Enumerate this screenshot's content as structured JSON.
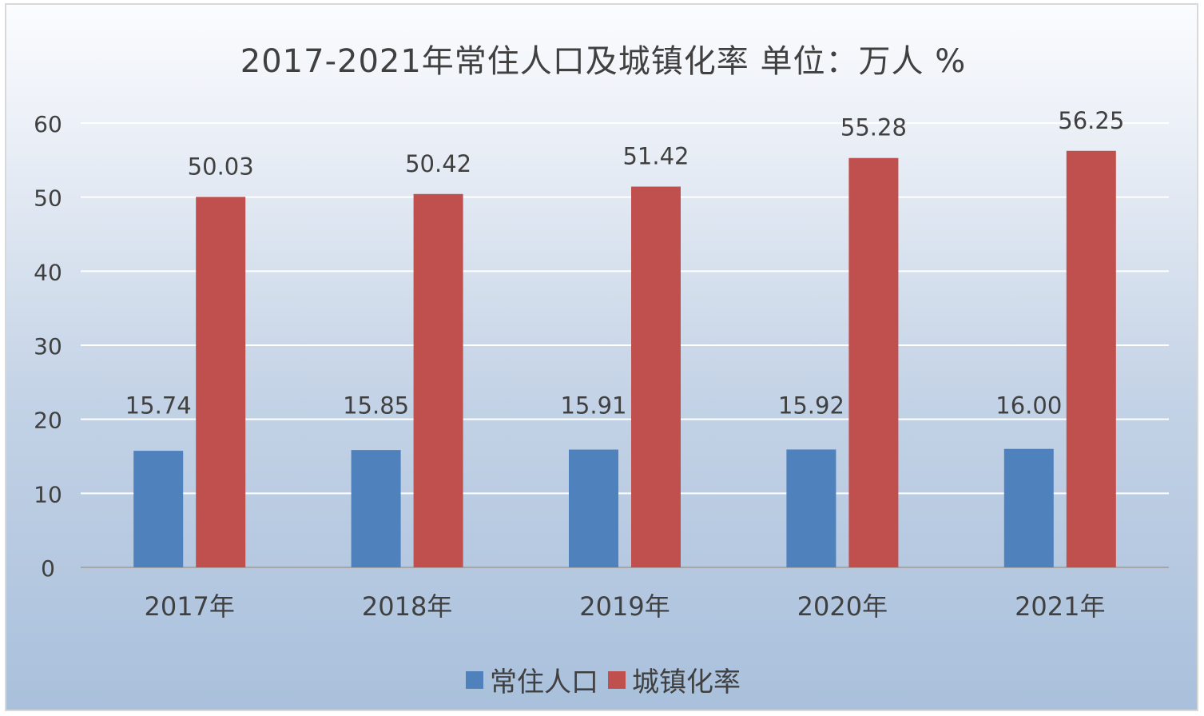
{
  "chart_data": {
    "type": "bar",
    "title": "2017-2021年常住人口及城镇化率  单位：万人  %",
    "categories": [
      "2017年",
      "2018年",
      "2019年",
      "2020年",
      "2021年"
    ],
    "series": [
      {
        "name": "常住人口",
        "color": "#4f81bd",
        "values": [
          15.74,
          15.85,
          15.91,
          15.92,
          16.0
        ],
        "labels": [
          "15.74",
          "15.85",
          "15.91",
          "15.92",
          "16.00"
        ]
      },
      {
        "name": "城镇化率",
        "color": "#c0504d",
        "values": [
          50.03,
          50.42,
          51.42,
          55.28,
          56.25
        ],
        "labels": [
          "50.03",
          "50.42",
          "51.42",
          "55.28",
          "56.25"
        ]
      }
    ],
    "ylim": [
      0,
      60
    ],
    "yticks": [
      0,
      10,
      20,
      30,
      40,
      50,
      60
    ],
    "xlabel": "",
    "ylabel": "",
    "grid": true,
    "legend_position": "bottom"
  }
}
